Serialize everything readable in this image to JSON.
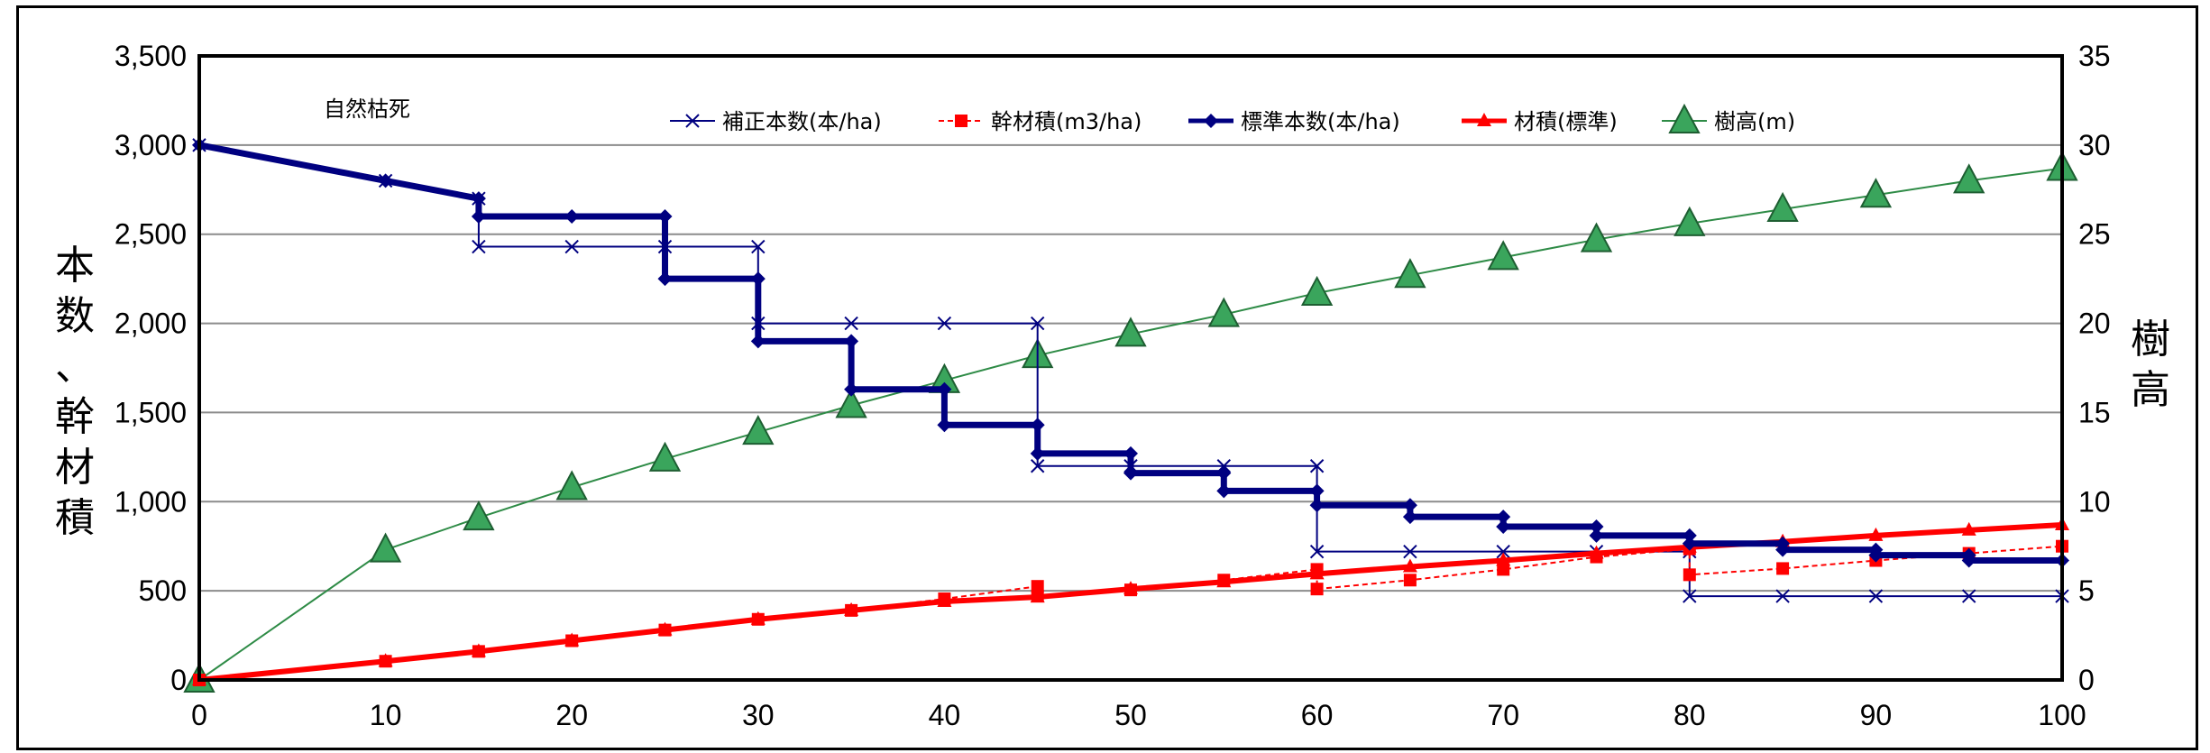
{
  "chart_data": {
    "type": "line",
    "annotation": "自然枯死",
    "ylabel_left": [
      "本",
      "数",
      "、",
      "幹",
      "材",
      "積"
    ],
    "ylabel_right": [
      "樹",
      "高"
    ],
    "xlim": [
      0,
      100
    ],
    "ylim_left": [
      0,
      3500
    ],
    "ylim_right": [
      0,
      35
    ],
    "x_ticks": [
      "0",
      "10",
      "20",
      "30",
      "40",
      "50",
      "60",
      "70",
      "80",
      "90",
      "100"
    ],
    "y_left_ticks": [
      "0",
      "500",
      "1,000",
      "1,500",
      "2,000",
      "2,500",
      "3,000",
      "3,500"
    ],
    "y_right_ticks": [
      "0",
      "5",
      "10",
      "15",
      "20",
      "25",
      "30",
      "35"
    ],
    "grid": "horizontal",
    "legend_position": "top",
    "series": [
      {
        "name": "補正本数(本/ha)",
        "axis": "left",
        "color": "#000080",
        "marker": "x",
        "points": [
          [
            0,
            3000
          ],
          [
            10,
            2800
          ],
          [
            15,
            2700
          ],
          [
            15,
            2430
          ],
          [
            20,
            2430
          ],
          [
            25,
            2430
          ],
          [
            30,
            2430
          ],
          [
            30,
            2000
          ],
          [
            35,
            2000
          ],
          [
            40,
            2000
          ],
          [
            45,
            2000
          ],
          [
            45,
            1200
          ],
          [
            50,
            1200
          ],
          [
            55,
            1200
          ],
          [
            60,
            1200
          ],
          [
            60,
            720
          ],
          [
            65,
            720
          ],
          [
            70,
            720
          ],
          [
            75,
            720
          ],
          [
            80,
            720
          ],
          [
            80,
            470
          ],
          [
            85,
            470
          ],
          [
            90,
            470
          ],
          [
            95,
            470
          ],
          [
            100,
            470
          ]
        ]
      },
      {
        "name": "幹材積(m3/ha)",
        "axis": "left",
        "color": "#ff0000",
        "marker": "square",
        "points": [
          [
            0,
            0
          ],
          [
            10,
            105
          ],
          [
            15,
            160
          ],
          [
            20,
            220
          ],
          [
            25,
            280
          ],
          [
            30,
            340
          ],
          [
            35,
            390
          ],
          [
            40,
            455
          ],
          [
            45,
            525
          ],
          [
            45,
            470
          ],
          [
            50,
            505
          ],
          [
            55,
            560
          ],
          [
            60,
            620
          ],
          [
            60,
            510
          ],
          [
            65,
            560
          ],
          [
            70,
            620
          ],
          [
            75,
            690
          ],
          [
            80,
            735
          ],
          [
            80,
            590
          ],
          [
            85,
            625
          ],
          [
            90,
            670
          ],
          [
            95,
            710
          ],
          [
            100,
            750
          ]
        ]
      },
      {
        "name": "標準本数(本/ha)",
        "axis": "left",
        "color": "#000080",
        "marker": "diamond",
        "points": [
          [
            0,
            3000
          ],
          [
            10,
            2800
          ],
          [
            15,
            2700
          ],
          [
            15,
            2600
          ],
          [
            20,
            2600
          ],
          [
            25,
            2600
          ],
          [
            25,
            2250
          ],
          [
            30,
            2250
          ],
          [
            30,
            1900
          ],
          [
            35,
            1900
          ],
          [
            35,
            1630
          ],
          [
            40,
            1630
          ],
          [
            40,
            1430
          ],
          [
            45,
            1430
          ],
          [
            45,
            1270
          ],
          [
            50,
            1270
          ],
          [
            50,
            1160
          ],
          [
            55,
            1160
          ],
          [
            55,
            1060
          ],
          [
            60,
            1060
          ],
          [
            60,
            980
          ],
          [
            65,
            980
          ],
          [
            65,
            915
          ],
          [
            70,
            915
          ],
          [
            70,
            860
          ],
          [
            75,
            860
          ],
          [
            75,
            810
          ],
          [
            80,
            810
          ],
          [
            80,
            765
          ],
          [
            85,
            765
          ],
          [
            85,
            730
          ],
          [
            90,
            730
          ],
          [
            90,
            700
          ],
          [
            95,
            700
          ],
          [
            95,
            670
          ],
          [
            100,
            670
          ]
        ]
      },
      {
        "name": "材積(標準)",
        "axis": "left",
        "color": "#ff0000",
        "marker": "triangle",
        "points": [
          [
            0,
            0
          ],
          [
            10,
            105
          ],
          [
            15,
            160
          ],
          [
            20,
            220
          ],
          [
            25,
            280
          ],
          [
            30,
            340
          ],
          [
            35,
            390
          ],
          [
            40,
            440
          ],
          [
            45,
            465
          ],
          [
            50,
            510
          ],
          [
            55,
            550
          ],
          [
            60,
            595
          ],
          [
            65,
            635
          ],
          [
            70,
            670
          ],
          [
            75,
            710
          ],
          [
            80,
            745
          ],
          [
            85,
            775
          ],
          [
            90,
            810
          ],
          [
            95,
            840
          ],
          [
            100,
            870
          ]
        ]
      },
      {
        "name": "樹高(m)",
        "axis": "right",
        "color": "#2e8b46",
        "marker": "big-triangle",
        "points": [
          [
            0,
            0
          ],
          [
            10,
            7.3
          ],
          [
            15,
            9.1
          ],
          [
            20,
            10.8
          ],
          [
            25,
            12.4
          ],
          [
            30,
            13.9
          ],
          [
            35,
            15.4
          ],
          [
            40,
            16.8
          ],
          [
            45,
            18.2
          ],
          [
            50,
            19.4
          ],
          [
            55,
            20.5
          ],
          [
            60,
            21.7
          ],
          [
            65,
            22.7
          ],
          [
            70,
            23.7
          ],
          [
            75,
            24.7
          ],
          [
            80,
            25.6
          ],
          [
            85,
            26.4
          ],
          [
            90,
            27.2
          ],
          [
            95,
            28.0
          ],
          [
            100,
            28.7
          ]
        ]
      }
    ]
  }
}
